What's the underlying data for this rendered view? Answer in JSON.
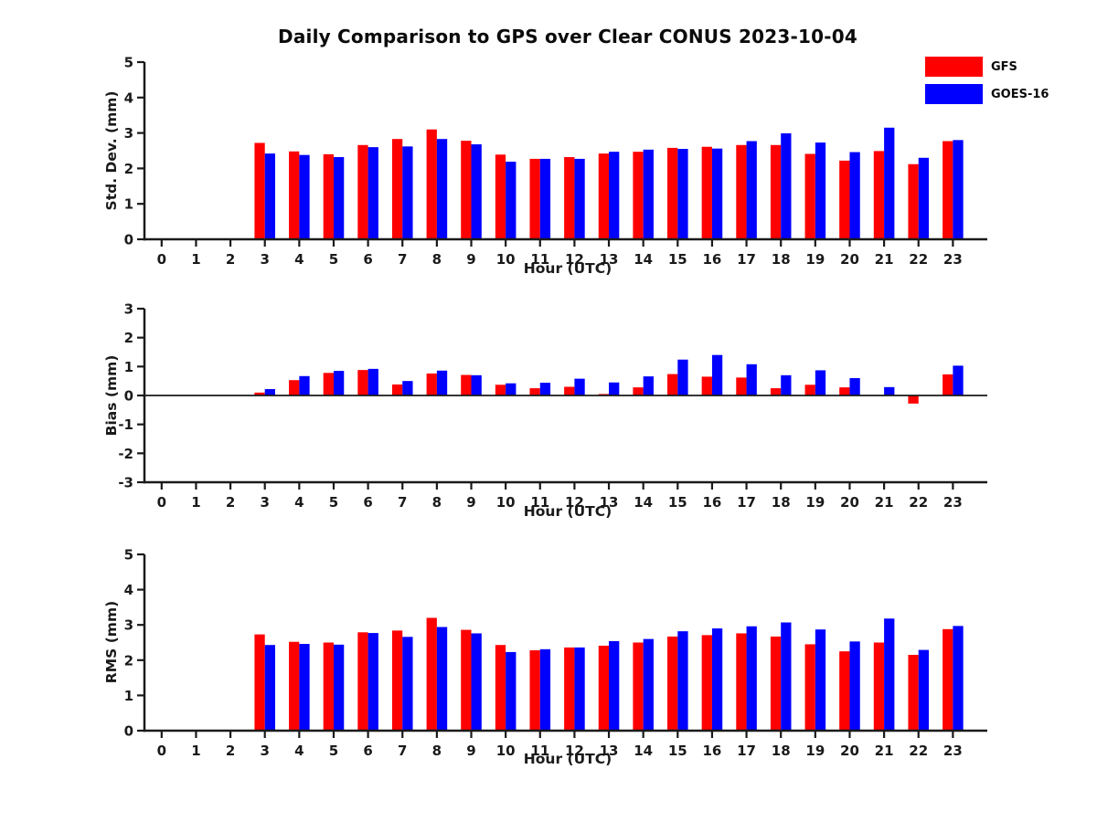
{
  "title": "Daily Comparison to GPS over Clear CONUS 2023-10-04",
  "colors": {
    "gfs": "#ff0000",
    "goes16": "#0000ff",
    "axis": "#1a1a1a"
  },
  "legend": {
    "items": [
      {
        "label": "GFS",
        "color": "#ff0000"
      },
      {
        "label": "GOES-16",
        "color": "#0000ff"
      }
    ]
  },
  "chart_data": [
    {
      "type": "bar",
      "title": "",
      "ylabel": "Std. Dev. (mm)",
      "xlabel": "Hour (UTC)",
      "ylim": [
        0,
        5
      ],
      "yticks": [
        0,
        1,
        2,
        3,
        4,
        5
      ],
      "grid": false,
      "legend_position": "top-right",
      "categories": [
        0,
        1,
        2,
        3,
        4,
        5,
        6,
        7,
        8,
        9,
        10,
        11,
        12,
        13,
        14,
        15,
        16,
        17,
        18,
        19,
        20,
        21,
        22,
        23
      ],
      "series": [
        {
          "name": "GFS",
          "color": "#ff0000",
          "values": [
            0,
            0,
            0,
            2.72,
            2.48,
            2.4,
            2.66,
            2.83,
            3.1,
            2.78,
            2.39,
            2.27,
            2.32,
            2.42,
            2.47,
            2.58,
            2.61,
            2.66,
            2.66,
            2.41,
            2.22,
            2.49,
            2.12,
            2.77
          ]
        },
        {
          "name": "GOES-16",
          "color": "#0000ff",
          "values": [
            0,
            0,
            0,
            2.42,
            2.38,
            2.32,
            2.6,
            2.62,
            2.83,
            2.68,
            2.19,
            2.27,
            2.27,
            2.47,
            2.53,
            2.55,
            2.56,
            2.77,
            2.99,
            2.73,
            2.46,
            3.15,
            2.3,
            2.8
          ]
        }
      ]
    },
    {
      "type": "bar",
      "title": "",
      "ylabel": "Bias (mm)",
      "xlabel": "Hour (UTC)",
      "ylim": [
        -3,
        3
      ],
      "yticks": [
        3,
        2,
        1,
        0,
        -1,
        -2,
        -3
      ],
      "zero_line": true,
      "grid": false,
      "categories": [
        0,
        1,
        2,
        3,
        4,
        5,
        6,
        7,
        8,
        9,
        10,
        11,
        12,
        13,
        14,
        15,
        16,
        17,
        18,
        19,
        20,
        21,
        22,
        23
      ],
      "series": [
        {
          "name": "GFS",
          "color": "#ff0000",
          "values": [
            0,
            0,
            0,
            0.1,
            0.53,
            0.78,
            0.88,
            0.38,
            0.76,
            0.71,
            0.37,
            0.25,
            0.3,
            0.05,
            0.28,
            0.74,
            0.65,
            0.62,
            0.25,
            0.37,
            0.28,
            0,
            -0.28,
            0.73
          ]
        },
        {
          "name": "GOES-16",
          "color": "#0000ff",
          "values": [
            0,
            0,
            0,
            0.22,
            0.67,
            0.85,
            0.92,
            0.5,
            0.86,
            0.7,
            0.42,
            0.44,
            0.58,
            0.45,
            0.66,
            1.24,
            1.4,
            1.08,
            0.7,
            0.87,
            0.6,
            0.29,
            0,
            1.03
          ]
        }
      ]
    },
    {
      "type": "bar",
      "title": "",
      "ylabel": "RMS (mm)",
      "xlabel": "Hour (UTC)",
      "ylim": [
        0,
        5
      ],
      "yticks": [
        0,
        1,
        2,
        3,
        4,
        5
      ],
      "grid": false,
      "categories": [
        0,
        1,
        2,
        3,
        4,
        5,
        6,
        7,
        8,
        9,
        10,
        11,
        12,
        13,
        14,
        15,
        16,
        17,
        18,
        19,
        20,
        21,
        22,
        23
      ],
      "series": [
        {
          "name": "GFS",
          "color": "#ff0000",
          "values": [
            0,
            0,
            0,
            2.73,
            2.52,
            2.5,
            2.79,
            2.84,
            3.2,
            2.86,
            2.43,
            2.28,
            2.36,
            2.41,
            2.5,
            2.67,
            2.71,
            2.76,
            2.67,
            2.45,
            2.25,
            2.5,
            2.15,
            2.88
          ]
        },
        {
          "name": "GOES-16",
          "color": "#0000ff",
          "values": [
            0,
            0,
            0,
            2.43,
            2.46,
            2.44,
            2.77,
            2.66,
            2.94,
            2.76,
            2.23,
            2.31,
            2.36,
            2.54,
            2.6,
            2.82,
            2.9,
            2.96,
            3.07,
            2.87,
            2.53,
            3.18,
            2.29,
            2.97
          ]
        }
      ]
    }
  ]
}
